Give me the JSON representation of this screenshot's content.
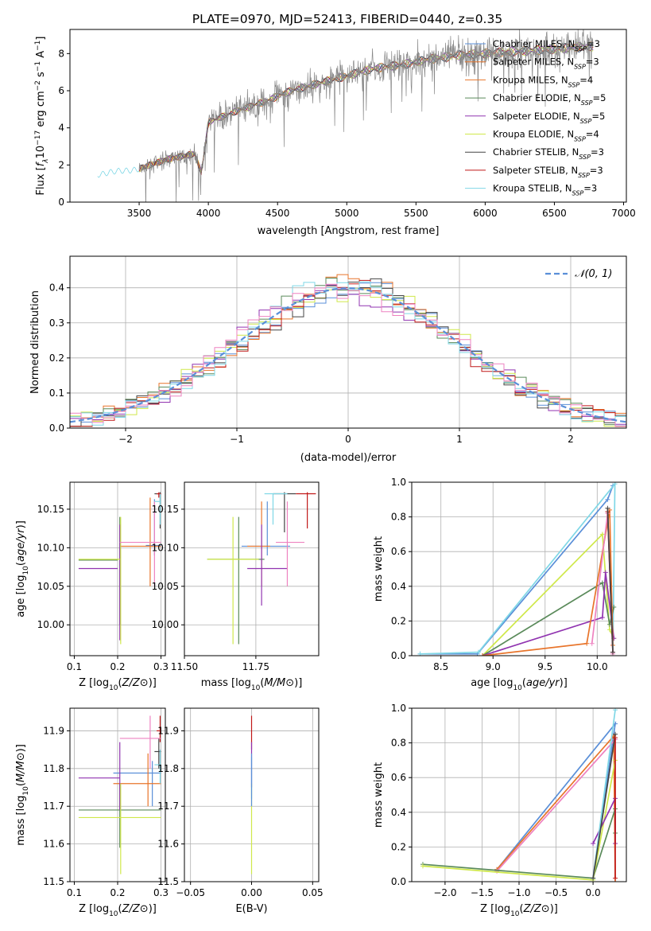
{
  "title": "PLATE=0970, MJD=52413, FIBERID=0440, z=0.35",
  "colors": {
    "chabrier_miles": "#5a8fd8",
    "salpeter_miles": "#e8742a",
    "kroupa_miles": "#e8742a",
    "chabrier_elodie": "#5a8a5a",
    "salpeter_elodie": "#9033b0",
    "kroupa_elodie": "#cfe84a",
    "chabrier_stelib": "#444444",
    "salpeter_stelib": "#c01818",
    "kroupa_stelib": "#7fd7e6",
    "pink": "#ee82c0",
    "data": "#888888",
    "normal": "#5a8fd8"
  },
  "legend_spectrum": [
    {
      "prefix": "Chabrier MILES, N",
      "sub": "SSP",
      "suffix": "=3",
      "color_key": "chabrier_miles"
    },
    {
      "prefix": "Salpeter MILES, N",
      "sub": "SSP",
      "suffix": "=3",
      "color_key": "salpeter_miles"
    },
    {
      "prefix": "Kroupa MILES, N",
      "sub": "SSP",
      "suffix": "=4",
      "color_key": "kroupa_miles"
    },
    {
      "prefix": "Chabrier ELODIE, N",
      "sub": "SSP",
      "suffix": "=5",
      "color_key": "chabrier_elodie"
    },
    {
      "prefix": "Salpeter ELODIE, N",
      "sub": "SSP",
      "suffix": "=5",
      "color_key": "salpeter_elodie"
    },
    {
      "prefix": "Kroupa ELODIE, N",
      "sub": "SSP",
      "suffix": "=4",
      "color_key": "kroupa_elodie"
    },
    {
      "prefix": "Chabrier STELIB, N",
      "sub": "SSP",
      "suffix": "=3",
      "color_key": "chabrier_stelib"
    },
    {
      "prefix": "Salpeter STELIB, N",
      "sub": "SSP",
      "suffix": "=3",
      "color_key": "salpeter_stelib"
    },
    {
      "prefix": "Kroupa STELIB, N",
      "sub": "SSP",
      "suffix": "=3",
      "color_key": "kroupa_stelib"
    }
  ],
  "chart_data": [
    {
      "id": "spectrum",
      "type": "line",
      "xlabel": "wavelength [Angstrom, rest frame]",
      "ylabel_parts": [
        "Flux [",
        "f",
        "λ",
        "10",
        "−17",
        " erg cm",
        "−2",
        " s",
        "−1",
        " A",
        "−1",
        "]"
      ],
      "xlim": [
        3000,
        7020
      ],
      "ylim": [
        0,
        9.3
      ],
      "xticks": [
        3500,
        4000,
        4500,
        5000,
        5500,
        6000,
        6500,
        7000
      ],
      "yticks": [
        0,
        2,
        4,
        6,
        8
      ],
      "grid": false,
      "continuum_model": [
        [
          3200,
          1.5
        ],
        [
          3500,
          1.8
        ],
        [
          3700,
          2.3
        ],
        [
          3900,
          2.6
        ],
        [
          3950,
          1.6
        ],
        [
          4000,
          4.3
        ],
        [
          4200,
          4.9
        ],
        [
          4400,
          5.4
        ],
        [
          4600,
          6.0
        ],
        [
          4800,
          6.4
        ],
        [
          5000,
          6.8
        ],
        [
          5200,
          7.2
        ],
        [
          5400,
          7.4
        ],
        [
          5600,
          7.7
        ],
        [
          5800,
          7.9
        ],
        [
          6000,
          8.0
        ],
        [
          6200,
          8.1
        ],
        [
          6400,
          8.2
        ],
        [
          6600,
          8.3
        ],
        [
          6780,
          8.4
        ]
      ],
      "data_range": [
        3500,
        6780
      ]
    },
    {
      "id": "residual_histogram",
      "type": "line",
      "xlabel": "(data-model)/error",
      "ylabel": "Normed distribution",
      "xlim": [
        -2.5,
        2.5
      ],
      "ylim": [
        0,
        0.49
      ],
      "xticks": [
        -2,
        -1,
        0,
        1,
        2
      ],
      "xtick_labels": [
        "−2",
        "−1",
        "0",
        "1",
        "2"
      ],
      "yticks": [
        0.0,
        0.1,
        0.2,
        0.3,
        0.4
      ],
      "grid": true,
      "bin_width": 0.1,
      "legend": "𝒩(0, 1)",
      "legend_position": "top-right",
      "reference_curve": "normal(0,1)"
    },
    {
      "id": "age_vs_Z",
      "type": "scatter",
      "xlabel": "Z [log10(Z/Z⊙)]",
      "ylabel": "age  [log10(age/yr)]",
      "xlim": [
        0.09,
        0.31
      ],
      "ylim": [
        9.96,
        10.185
      ],
      "xticks": [
        0.1,
        0.2,
        0.3
      ],
      "yticks": [
        10.0,
        10.05,
        10.1,
        10.15
      ],
      "grid": true,
      "points": [
        {
          "color_key": "chabrier_miles",
          "x": 0.285,
          "y": 10.103,
          "xerr": [
            0.265,
            0.3
          ],
          "yerr": [
            10.09,
            10.163
          ]
        },
        {
          "color_key": "salpeter_miles",
          "x": 0.275,
          "y": 10.102,
          "xerr": [
            0.205,
            0.3
          ],
          "yerr": [
            10.05,
            10.165
          ]
        },
        {
          "color_key": "chabrier_elodie",
          "x": 0.205,
          "y": 10.084,
          "xerr": [
            0.11,
            0.2
          ],
          "yerr": [
            10.0,
            10.14
          ]
        },
        {
          "color_key": "salpeter_elodie",
          "x": 0.205,
          "y": 10.073,
          "xerr": [
            0.11,
            0.2
          ],
          "yerr": [
            9.98,
            10.13
          ]
        },
        {
          "color_key": "kroupa_elodie",
          "x": 0.207,
          "y": 10.085,
          "xerr": [
            0.11,
            0.205
          ],
          "yerr": [
            9.975,
            10.14
          ]
        },
        {
          "color_key": "chabrier_stelib",
          "x": 0.298,
          "y": 10.17,
          "xerr": [
            0.285,
            0.3
          ],
          "yerr": [
            10.125,
            10.172
          ]
        },
        {
          "color_key": "salpeter_stelib",
          "x": 0.295,
          "y": 10.17,
          "xerr": [
            0.29,
            0.3
          ],
          "yerr": [
            10.165,
            10.172
          ]
        },
        {
          "color_key": "kroupa_stelib",
          "x": 0.298,
          "y": 10.16,
          "xerr": [
            0.285,
            0.3
          ],
          "yerr": [
            10.13,
            10.17
          ]
        },
        {
          "color_key": "pink",
          "x": 0.285,
          "y": 10.107,
          "xerr": [
            0.205,
            0.3
          ],
          "yerr": [
            10.05,
            10.16
          ]
        }
      ]
    },
    {
      "id": "age_vs_mass",
      "type": "scatter",
      "xlabel": "mass [log10(M/M⊙)]",
      "ylabel": "",
      "xlim": [
        11.5,
        11.97
      ],
      "ylim": [
        9.96,
        10.185
      ],
      "xticks": [
        11.5,
        11.75
      ],
      "yticks": [
        10.0,
        10.05,
        10.1,
        10.15
      ],
      "grid": true,
      "points": [
        {
          "color_key": "chabrier_miles",
          "x": 11.79,
          "y": 10.102,
          "xerr": [
            11.7,
            11.87
          ],
          "yerr": [
            10.09,
            10.16
          ]
        },
        {
          "color_key": "salpeter_miles",
          "x": 11.77,
          "y": 10.102,
          "xerr": [
            11.72,
            11.8
          ],
          "yerr": [
            10.05,
            10.16
          ]
        },
        {
          "color_key": "chabrier_elodie",
          "x": 11.69,
          "y": 10.085,
          "xerr": [
            11.58,
            11.78
          ],
          "yerr": [
            9.975,
            10.14
          ]
        },
        {
          "color_key": "salpeter_elodie",
          "x": 11.77,
          "y": 10.073,
          "xerr": [
            11.72,
            11.86
          ],
          "yerr": [
            10.025,
            10.13
          ]
        },
        {
          "color_key": "kroupa_elodie",
          "x": 11.67,
          "y": 10.085,
          "xerr": [
            11.58,
            11.76
          ],
          "yerr": [
            9.975,
            10.14
          ]
        },
        {
          "color_key": "chabrier_stelib",
          "x": 11.85,
          "y": 10.17,
          "xerr": [
            11.81,
            11.89
          ],
          "yerr": [
            10.12,
            10.172
          ]
        },
        {
          "color_key": "salpeter_stelib",
          "x": 11.93,
          "y": 10.17,
          "xerr": [
            11.89,
            11.96
          ],
          "yerr": [
            10.125,
            10.172
          ]
        },
        {
          "color_key": "kroupa_stelib",
          "x": 11.81,
          "y": 10.17,
          "xerr": [
            11.78,
            11.86
          ],
          "yerr": [
            10.13,
            10.17
          ]
        },
        {
          "color_key": "pink",
          "x": 11.86,
          "y": 10.107,
          "xerr": [
            11.82,
            11.92
          ],
          "yerr": [
            10.05,
            10.16
          ]
        }
      ]
    },
    {
      "id": "mass_weight_vs_age",
      "type": "line",
      "xlabel": "age  [log10(age/yr)]",
      "ylabel": "mass weight",
      "xlim": [
        8.22,
        10.28
      ],
      "ylim": [
        0,
        1.0
      ],
      "xticks": [
        8.5,
        9.0,
        9.5,
        10.0
      ],
      "yticks": [
        0.0,
        0.2,
        0.4,
        0.6,
        0.8,
        1.0
      ],
      "grid": true,
      "series": [
        {
          "color_key": "chabrier_miles",
          "x": [
            8.3,
            8.85,
            10.1,
            10.15
          ],
          "y": [
            0.01,
            0.01,
            0.9,
            0.98
          ]
        },
        {
          "color_key": "kroupa_stelib",
          "x": [
            8.3,
            8.86,
            10.17,
            10.15
          ],
          "y": [
            0.01,
            0.02,
            0.99,
            0.02
          ]
        },
        {
          "color_key": "kroupa_elodie",
          "x": [
            8.9,
            10.05,
            10.12,
            10.16
          ],
          "y": [
            0.0,
            0.7,
            0.15,
            0.1
          ]
        },
        {
          "color_key": "chabrier_elodie",
          "x": [
            8.9,
            10.05,
            10.12,
            10.16
          ],
          "y": [
            0.0,
            0.42,
            0.18,
            0.28
          ]
        },
        {
          "color_key": "salpeter_elodie",
          "x": [
            8.9,
            10.05,
            10.08,
            10.16
          ],
          "y": [
            0.0,
            0.22,
            0.48,
            0.1
          ]
        },
        {
          "color_key": "salpeter_miles",
          "x": [
            8.9,
            9.9,
            10.12,
            10.15
          ],
          "y": [
            0.0,
            0.07,
            0.84,
            0.06
          ]
        },
        {
          "color_key": "pink",
          "x": [
            9.95,
            10.1,
            10.15
          ],
          "y": [
            0.07,
            0.82,
            0.01
          ]
        },
        {
          "color_key": "salpeter_stelib",
          "x": [
            10.1,
            10.15
          ],
          "y": [
            0.83,
            0.02
          ]
        },
        {
          "color_key": "chabrier_stelib",
          "x": [
            10.1,
            10.15
          ],
          "y": [
            0.85,
            0.02
          ]
        }
      ]
    },
    {
      "id": "mass_vs_Z",
      "type": "scatter",
      "xlabel": "Z [log10(Z/Z⊙)]",
      "ylabel": "mass [log10(M/M⊙)]",
      "xlim": [
        0.09,
        0.31
      ],
      "ylim": [
        11.5,
        11.96
      ],
      "xticks": [
        0.1,
        0.2,
        0.3
      ],
      "yticks": [
        11.5,
        11.6,
        11.7,
        11.8,
        11.9
      ],
      "grid": true,
      "points": [
        {
          "color_key": "chabrier_miles",
          "x": 0.28,
          "y": 11.788,
          "xerr": [
            0.19,
            0.3
          ],
          "yerr": [
            11.7,
            11.82
          ]
        },
        {
          "color_key": "salpeter_miles",
          "x": 0.27,
          "y": 11.76,
          "xerr": [
            0.19,
            0.3
          ],
          "yerr": [
            11.7,
            11.84
          ]
        },
        {
          "color_key": "chabrier_elodie",
          "x": 0.205,
          "y": 11.69,
          "xerr": [
            0.11,
            0.3
          ],
          "yerr": [
            11.59,
            11.76
          ]
        },
        {
          "color_key": "salpeter_elodie",
          "x": 0.205,
          "y": 11.775,
          "xerr": [
            0.11,
            0.205
          ],
          "yerr": [
            11.69,
            11.87
          ]
        },
        {
          "color_key": "kroupa_elodie",
          "x": 0.207,
          "y": 11.67,
          "xerr": [
            0.11,
            0.3
          ],
          "yerr": [
            11.52,
            11.76
          ]
        },
        {
          "color_key": "chabrier_stelib",
          "x": 0.295,
          "y": 11.845,
          "xerr": [
            0.285,
            0.3
          ],
          "yerr": [
            11.8,
            11.88
          ]
        },
        {
          "color_key": "salpeter_stelib",
          "x": 0.298,
          "y": 11.9,
          "xerr": [
            0.29,
            0.3
          ],
          "yerr": [
            11.87,
            11.94
          ]
        },
        {
          "color_key": "kroupa_stelib",
          "x": 0.298,
          "y": 11.81,
          "xerr": [
            0.285,
            0.3
          ],
          "yerr": [
            11.76,
            11.85
          ]
        },
        {
          "color_key": "pink",
          "x": 0.275,
          "y": 11.88,
          "xerr": [
            0.205,
            0.3
          ],
          "yerr": [
            11.8,
            11.94
          ]
        }
      ]
    },
    {
      "id": "mass_vs_ebv",
      "type": "scatter",
      "xlabel": "E(B-V)",
      "ylabel": "",
      "xlim": [
        -0.055,
        0.055
      ],
      "ylim": [
        11.5,
        11.96
      ],
      "xticks": [
        -0.05,
        0.0,
        0.05
      ],
      "xtick_labels": [
        "−0.05",
        "0.00",
        "0.05"
      ],
      "yticks": [
        11.5,
        11.6,
        11.7,
        11.8,
        11.9
      ],
      "grid": true,
      "points": [
        {
          "color_key": "salpeter_stelib",
          "x": 0.0,
          "y": 11.9,
          "yerr": [
            11.85,
            11.94
          ]
        },
        {
          "color_key": "salpeter_elodie",
          "x": 0.0,
          "y": 11.8,
          "yerr": [
            11.75,
            11.87
          ]
        },
        {
          "color_key": "kroupa_stelib",
          "x": 0.0,
          "y": 11.78,
          "yerr": [
            11.72,
            11.83
          ]
        },
        {
          "color_key": "kroupa_elodie",
          "x": 0.0,
          "y": 11.67,
          "yerr": [
            11.52,
            11.76
          ]
        },
        {
          "color_key": "chabrier_miles",
          "x": 0.0,
          "y": 11.78,
          "yerr": [
            11.7,
            11.84
          ]
        }
      ]
    },
    {
      "id": "mass_weight_vs_Z",
      "type": "line",
      "xlabel": "Z [log10(Z/Z⊙)]",
      "ylabel": "mass weight",
      "xlim": [
        -2.45,
        0.45
      ],
      "ylim": [
        0,
        1.0
      ],
      "xticks": [
        -2.0,
        -1.5,
        -1.0,
        -0.5,
        0.0
      ],
      "xtick_labels": [
        "−2.0",
        "−1.5",
        "−1.0",
        "−0.5",
        "0.0"
      ],
      "yticks": [
        0.0,
        0.2,
        0.4,
        0.6,
        0.8,
        1.0
      ],
      "grid": true,
      "series": [
        {
          "color_key": "chabrier_miles",
          "x": [
            -1.3,
            0.3,
            0.0
          ],
          "y": [
            0.07,
            0.91,
            0.02
          ]
        },
        {
          "color_key": "salpeter_miles",
          "x": [
            -1.3,
            0.28,
            0.3
          ],
          "y": [
            0.07,
            0.84,
            0.0
          ]
        },
        {
          "color_key": "pink",
          "x": [
            -1.3,
            0.3
          ],
          "y": [
            0.06,
            0.82
          ]
        },
        {
          "color_key": "chabrier_elodie",
          "x": [
            -2.3,
            0.0,
            0.3,
            0.3
          ],
          "y": [
            0.1,
            0.02,
            0.42,
            0.28
          ]
        },
        {
          "color_key": "kroupa_elodie",
          "x": [
            -2.3,
            0.0,
            0.3
          ],
          "y": [
            0.09,
            0.01,
            0.7
          ]
        },
        {
          "color_key": "salpeter_elodie",
          "x": [
            0.0,
            0.3,
            0.3
          ],
          "y": [
            0.22,
            0.48,
            0.22
          ]
        },
        {
          "color_key": "kroupa_stelib",
          "x": [
            0.0,
            0.3
          ],
          "y": [
            0.02,
            0.99
          ]
        },
        {
          "color_key": "chabrier_stelib",
          "x": [
            0.0,
            0.3
          ],
          "y": [
            0.02,
            0.85
          ]
        },
        {
          "color_key": "salpeter_stelib",
          "x": [
            0.3,
            0.3
          ],
          "y": [
            0.83,
            0.02
          ]
        }
      ]
    }
  ]
}
